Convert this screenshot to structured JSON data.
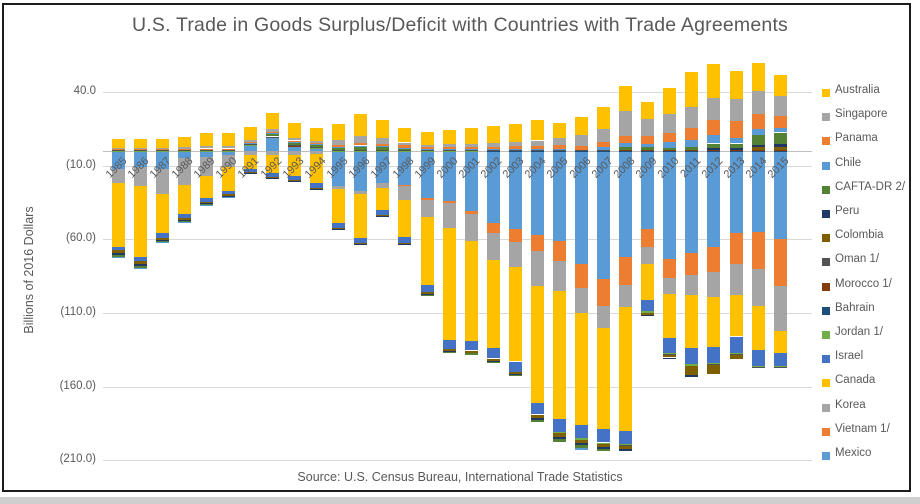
{
  "title": "U.S. Trade in Goods Surplus/Deficit with Countries with Trade Agreements",
  "source": "Source: U.S. Census Bureau, International Trade Statistics",
  "y_axis": {
    "label": "Billions of 2016 Dollars",
    "ticks": [
      {
        "label": "40.0",
        "value": 40
      },
      {
        "label": "(10.0)",
        "value": -10
      },
      {
        "label": "(60.0)",
        "value": -60
      },
      {
        "label": "(110.0)",
        "value": -110
      },
      {
        "label": "(160.0)",
        "value": -160
      },
      {
        "label": "(210.0)",
        "value": -210
      }
    ]
  },
  "legend": [
    {
      "label": "Australia",
      "color": "#FFC000"
    },
    {
      "label": "Singapore",
      "color": "#A5A5A5"
    },
    {
      "label": "Panama",
      "color": "#ED7D31"
    },
    {
      "label": "Chile",
      "color": "#5B9BD5"
    },
    {
      "label": "CAFTA-DR 2/",
      "color": "#548235"
    },
    {
      "label": "Peru",
      "color": "#203864"
    },
    {
      "label": "Colombia",
      "color": "#7F6000"
    },
    {
      "label": "Oman 1/",
      "color": "#525252"
    },
    {
      "label": "Morocco 1/",
      "color": "#843C0C"
    },
    {
      "label": "Bahrain",
      "color": "#1F4E79"
    },
    {
      "label": "Jordan 1/",
      "color": "#70AD47"
    },
    {
      "label": "Israel",
      "color": "#4472C4"
    },
    {
      "label": "Canada",
      "color": "#FFC000"
    },
    {
      "label": "Korea",
      "color": "#A5A5A5"
    },
    {
      "label": "Vietnam 1/",
      "color": "#ED7D31"
    },
    {
      "label": "Mexico",
      "color": "#5B9BD5"
    }
  ],
  "chart_data": {
    "type": "bar",
    "stacked": true,
    "title": "U.S. Trade in Goods Surplus/Deficit with Countries with Trade Agreements",
    "xlabel": "",
    "ylabel": "Billions of 2016 Dollars",
    "ylim": [
      -210,
      40
    ],
    "grid": true,
    "legend_position": "right",
    "units": "billions of 2016 dollars",
    "categories": [
      1985,
      1986,
      1987,
      1988,
      1989,
      1990,
      1991,
      1992,
      1993,
      1994,
      1995,
      1996,
      1997,
      1998,
      1999,
      2000,
      2001,
      2002,
      2003,
      2004,
      2005,
      2006,
      2007,
      2008,
      2009,
      2010,
      2011,
      2012,
      2013,
      2014,
      2015
    ],
    "series": [
      {
        "name": "Mexico",
        "color": "#5B9BD5",
        "values": [
          -12,
          -11,
          -12,
          -5,
          -4,
          -3,
          4,
          9,
          3,
          2,
          -24,
          -27,
          -22,
          -23,
          -32,
          -34,
          -41,
          -49,
          -53,
          -57,
          -61,
          -77,
          -87,
          -72,
          -53,
          -73,
          -69,
          -65,
          -56,
          -55,
          -60
        ]
      },
      {
        "name": "Vietnam 1/",
        "color": "#ED7D31",
        "values": [
          0,
          0,
          0,
          0,
          0,
          0,
          0,
          0,
          0,
          0,
          0,
          0,
          0,
          -0.5,
          -1,
          -1.5,
          -2,
          -7,
          -9,
          -11,
          -14,
          -16,
          -18,
          -19,
          -12,
          -13,
          -15,
          -17,
          -21,
          -25,
          -32
        ]
      },
      {
        "name": "Korea",
        "color": "#A5A5A5",
        "values": [
          -10,
          -13,
          -17,
          -18,
          -13,
          -8,
          -3,
          -3,
          -3,
          -2,
          -2,
          -2,
          -3,
          -10,
          -12,
          -17,
          -18,
          -18,
          -17,
          -24,
          -20,
          -17,
          -15,
          -15,
          -12,
          -11,
          -14,
          -17,
          -21,
          -25,
          -30
        ]
      },
      {
        "name": "Canada",
        "color": "#FFC000",
        "values": [
          -43,
          -48,
          -27,
          -20,
          -15,
          -16,
          -9,
          -12,
          -14,
          -20,
          -23,
          -30,
          -15,
          -25,
          -46,
          -76,
          -68,
          -60,
          -64,
          -79,
          -87,
          -76,
          -69,
          -84,
          -24,
          -30,
          -36,
          -34,
          -28,
          -30,
          -15
        ]
      },
      {
        "name": "Israel",
        "color": "#4472C4",
        "values": [
          -2.5,
          -3,
          -3,
          -2.5,
          -2.5,
          -2.5,
          -2.5,
          -2.5,
          -3,
          -3,
          -3.5,
          -3.5,
          -3.5,
          -4,
          -5,
          -6,
          -6.5,
          -7,
          -7,
          -8,
          -9,
          -9,
          -9,
          -9,
          -8,
          -10,
          -11,
          -11,
          -11,
          -11,
          -9
        ]
      },
      {
        "name": "Jordan 1/",
        "color": "#70AD47",
        "values": [
          0.2,
          0.2,
          0.2,
          0.2,
          0.2,
          0.2,
          0.3,
          0.3,
          0.3,
          0.3,
          0.3,
          0.3,
          0.3,
          0.2,
          0.2,
          0.2,
          0.2,
          0.1,
          0,
          -0.5,
          -0.8,
          -1,
          -1,
          -1,
          -1,
          -1,
          -1,
          -1,
          -1,
          -1,
          -1
        ]
      },
      {
        "name": "Bahrain",
        "color": "#1F4E79",
        "values": [
          0.2,
          0.2,
          0.2,
          0.2,
          0.2,
          0.2,
          0.2,
          0.2,
          0.2,
          0.2,
          0.2,
          0.2,
          0.2,
          0.2,
          0.2,
          0.2,
          0.2,
          0.2,
          0.2,
          0.2,
          0.2,
          0.2,
          0.2,
          0.2,
          0.2,
          0.2,
          0.3,
          0.3,
          0.3,
          0.3,
          0.3
        ]
      },
      {
        "name": "Morocco 1/",
        "color": "#843C0C",
        "values": [
          0.2,
          0.2,
          0.2,
          0.2,
          0.2,
          0.2,
          0.2,
          0.2,
          0.2,
          0.2,
          0.3,
          0.3,
          0.3,
          0.3,
          0.3,
          0.3,
          0.3,
          0.3,
          0.3,
          0.3,
          0.3,
          0.3,
          0.3,
          0.3,
          0.3,
          0.3,
          0.3,
          0.3,
          0.3,
          0.3,
          0.3
        ]
      },
      {
        "name": "Oman 1/",
        "color": "#525252",
        "values": [
          0.1,
          0.1,
          0.1,
          0.1,
          0.1,
          0.1,
          0.1,
          0.1,
          0.1,
          0.1,
          0.1,
          0.1,
          0.1,
          0.1,
          0.1,
          0.1,
          0.1,
          0.1,
          0.1,
          0.1,
          0.1,
          0.1,
          0.1,
          -0.5,
          -0.3,
          -0.3,
          -0.3,
          -0.3,
          -0.3,
          -0.3,
          -0.3
        ]
      },
      {
        "name": "Colombia",
        "color": "#7F6000",
        "values": [
          -2,
          -2,
          -1.5,
          -1.5,
          -1,
          -1,
          -0.5,
          -0.5,
          -0.5,
          -0.5,
          -0.5,
          -0.5,
          -0.5,
          -0.5,
          -1,
          -1.5,
          -1.5,
          -1.5,
          -1.5,
          -2,
          -2.5,
          -2.5,
          -2,
          -2,
          -1,
          -2,
          -6,
          -6,
          -3,
          2,
          2
        ]
      },
      {
        "name": "Peru",
        "color": "#203864",
        "values": [
          -1,
          -1,
          -0.5,
          -0.5,
          -0.5,
          -0.5,
          -0.3,
          -0.3,
          -0.3,
          -0.3,
          -0.3,
          -0.3,
          -0.3,
          -0.3,
          -0.5,
          -0.5,
          -0.5,
          -0.5,
          -0.5,
          -1,
          -1.5,
          -1.5,
          -1.5,
          -1.5,
          -0.5,
          -1,
          -1.5,
          1.5,
          1.5,
          1.5,
          2
        ]
      },
      {
        "name": "CAFTA-DR 2/",
        "color": "#548235",
        "values": [
          -1.5,
          -1.5,
          -1,
          -1,
          -0.5,
          -0.5,
          0.5,
          2,
          2,
          1.5,
          1.5,
          2.5,
          2,
          1,
          -1,
          -1,
          -1,
          -1,
          -1,
          -1.5,
          -2,
          -2,
          -1.5,
          2,
          2,
          1.5,
          2,
          3,
          3,
          7,
          8
        ]
      },
      {
        "name": "Chile",
        "color": "#5B9BD5",
        "values": [
          -0.5,
          -0.5,
          -0.5,
          -0.5,
          -0.5,
          -0.3,
          0.2,
          0.3,
          0.3,
          0.2,
          0.3,
          0.3,
          0.5,
          0.5,
          0.5,
          0.5,
          0.5,
          0.5,
          0.5,
          0.5,
          1,
          -1.5,
          2,
          3,
          2.5,
          4,
          5,
          6,
          4,
          4,
          3
        ]
      },
      {
        "name": "Panama",
        "color": "#ED7D31",
        "values": [
          1,
          1,
          1,
          1,
          1,
          1,
          1,
          1,
          1,
          1,
          1.5,
          1.5,
          1.5,
          1.5,
          1.5,
          1.5,
          1.5,
          1.5,
          2,
          2,
          2.5,
          3,
          3.5,
          5,
          5,
          6,
          8,
          10,
          11,
          10,
          8
        ]
      },
      {
        "name": "Singapore",
        "color": "#A5A5A5",
        "values": [
          0.5,
          0.5,
          0.5,
          1,
          1.5,
          1.5,
          1,
          2,
          2,
          1,
          3,
          5,
          4,
          2,
          1,
          2,
          2,
          3,
          3,
          4,
          5,
          7.5,
          9,
          17,
          12,
          13,
          14,
          15,
          15,
          16,
          14
        ]
      },
      {
        "name": "Australia",
        "color": "#FFC000",
        "values": [
          6,
          6,
          6,
          7,
          9,
          9,
          8.5,
          11,
          10,
          9,
          11,
          15,
          12,
          10,
          9,
          9.5,
          11,
          11.5,
          12,
          14,
          10,
          12,
          15,
          17,
          11,
          18,
          24,
          23,
          19,
          19,
          14
        ]
      }
    ]
  }
}
